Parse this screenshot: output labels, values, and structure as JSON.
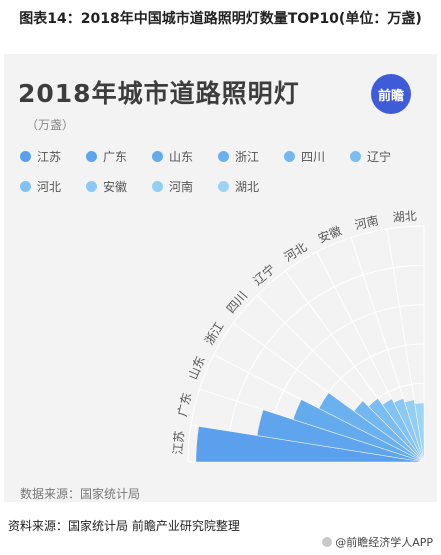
{
  "caption": "图表14：2018年中国城市道路照明灯数量TOP10(单位：万盏)",
  "badge": "前瞻",
  "chart_source": "数据来源：国家统计局",
  "footer": {
    "source": "资料来源：国家统计局  前瞻产业研究院整理",
    "brand": "@前瞻经济学人APP"
  },
  "chart_data": {
    "type": "bar",
    "layout": "radial-stacked-sectors",
    "title": "2018年城市道路照明灯",
    "unit": "（万盏）",
    "legend_position": "top-left",
    "categories": [
      "江苏",
      "广东",
      "山东",
      "浙江",
      "四川",
      "辽宁",
      "河北",
      "安徽",
      "河南",
      "湖北"
    ],
    "values": [
      290,
      215,
      175,
      150,
      110,
      100,
      90,
      85,
      80,
      75
    ],
    "colors": [
      "#5aa0ec",
      "#5ea5ed",
      "#64abee",
      "#6bb1f0",
      "#72b7f1",
      "#7abdf2",
      "#82c3f3",
      "#8bc9f4",
      "#93cff5",
      "#9cd4f6"
    ],
    "axis_max": 300,
    "rings": 6,
    "grid": true
  }
}
